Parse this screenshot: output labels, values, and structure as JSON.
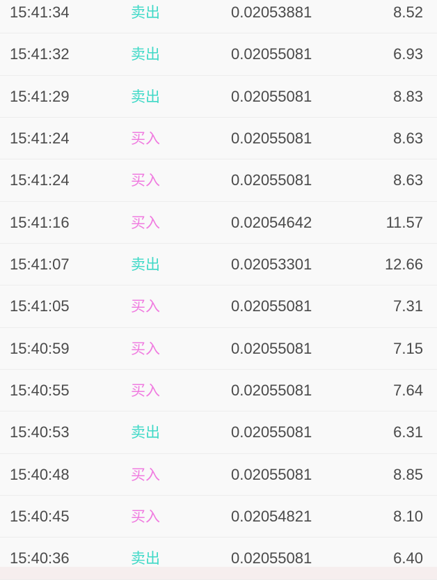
{
  "colors": {
    "buy": "#f07be0",
    "sell": "#3fd9c7",
    "text": "#4a4a4a",
    "background": "#f9f9f9"
  },
  "trades": [
    {
      "time": "15:41:34",
      "side": "卖出",
      "type": "sell",
      "price": "0.02053881",
      "qty": "8.52"
    },
    {
      "time": "15:41:32",
      "side": "卖出",
      "type": "sell",
      "price": "0.02055081",
      "qty": "6.93"
    },
    {
      "time": "15:41:29",
      "side": "卖出",
      "type": "sell",
      "price": "0.02055081",
      "qty": "8.83"
    },
    {
      "time": "15:41:24",
      "side": "买入",
      "type": "buy",
      "price": "0.02055081",
      "qty": "8.63"
    },
    {
      "time": "15:41:24",
      "side": "买入",
      "type": "buy",
      "price": "0.02055081",
      "qty": "8.63"
    },
    {
      "time": "15:41:16",
      "side": "买入",
      "type": "buy",
      "price": "0.02054642",
      "qty": "11.57"
    },
    {
      "time": "15:41:07",
      "side": "卖出",
      "type": "sell",
      "price": "0.02053301",
      "qty": "12.66"
    },
    {
      "time": "15:41:05",
      "side": "买入",
      "type": "buy",
      "price": "0.02055081",
      "qty": "7.31"
    },
    {
      "time": "15:40:59",
      "side": "买入",
      "type": "buy",
      "price": "0.02055081",
      "qty": "7.15"
    },
    {
      "time": "15:40:55",
      "side": "买入",
      "type": "buy",
      "price": "0.02055081",
      "qty": "7.64"
    },
    {
      "time": "15:40:53",
      "side": "卖出",
      "type": "sell",
      "price": "0.02055081",
      "qty": "6.31"
    },
    {
      "time": "15:40:48",
      "side": "买入",
      "type": "buy",
      "price": "0.02055081",
      "qty": "8.85"
    },
    {
      "time": "15:40:45",
      "side": "买入",
      "type": "buy",
      "price": "0.02054821",
      "qty": "8.10"
    },
    {
      "time": "15:40:36",
      "side": "卖出",
      "type": "sell",
      "price": "0.02055081",
      "qty": "6.40"
    }
  ]
}
